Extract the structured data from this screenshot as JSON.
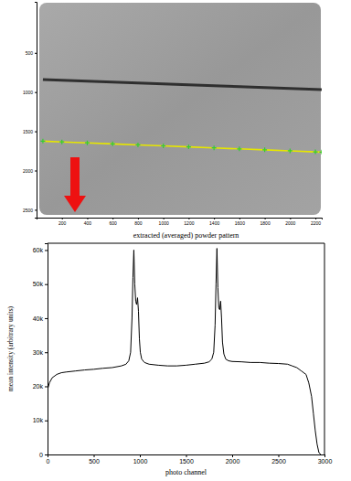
{
  "chart_data": [
    {
      "type": "image",
      "xlim": [
        0,
        2250
      ],
      "ylim": [
        2600,
        -150
      ],
      "xticks": [
        200,
        400,
        600,
        800,
        1000,
        1200,
        1400,
        1600,
        1800,
        2000,
        2200
      ],
      "yticks": [
        500,
        1000,
        1500,
        2000,
        2500
      ],
      "x": [
        50,
        200,
        400,
        600,
        800,
        1000,
        1200,
        1400,
        1600,
        1800,
        2000,
        2200,
        2250
      ],
      "series": [
        {
          "color": "#1c1c1c",
          "values": [
            840,
            849,
            861,
            872,
            884,
            895,
            907,
            919,
            930,
            942,
            953,
            965,
            968
          ]
        },
        {
          "color": "#e6e600",
          "marker": "plus",
          "values": [
            1625,
            1635,
            1647,
            1660,
            1673,
            1685,
            1698,
            1711,
            1724,
            1736,
            1749,
            1762,
            1765
          ]
        }
      ]
    },
    {
      "type": "line",
      "title": "extracted (averaged) powder pattern",
      "xlabel": "photo channel",
      "ylabel": "mean intensity (arbitrary units)",
      "xlim": [
        0,
        3000
      ],
      "ylim": [
        0,
        62000
      ],
      "xticks": [
        0,
        500,
        1000,
        1500,
        2000,
        2500,
        3000
      ],
      "yticks": [
        0,
        {
          "value": 10000,
          "label": "10k"
        },
        {
          "value": 20000,
          "label": "20k"
        },
        {
          "value": 30000,
          "label": "30k"
        },
        {
          "value": 40000,
          "label": "40k"
        },
        {
          "value": 50000,
          "label": "50k"
        },
        {
          "value": 60000,
          "label": "60k"
        }
      ],
      "color": "#000000",
      "x": [
        0,
        20,
        50,
        100,
        150,
        200,
        300,
        400,
        500,
        600,
        700,
        800,
        850,
        880,
        900,
        915,
        925,
        935,
        945,
        955,
        965,
        975,
        985,
        995,
        1005,
        1020,
        1050,
        1100,
        1200,
        1300,
        1400,
        1500,
        1600,
        1700,
        1750,
        1780,
        1800,
        1815,
        1825,
        1835,
        1845,
        1855,
        1865,
        1875,
        1885,
        1895,
        1910,
        1930,
        1960,
        2000,
        2100,
        2200,
        2300,
        2400,
        2500,
        2600,
        2650,
        2700,
        2750,
        2800,
        2830,
        2860,
        2880,
        2900,
        2920,
        2940,
        2960
      ],
      "values": [
        19000,
        21000,
        22500,
        23500,
        24000,
        24200,
        24500,
        24800,
        25000,
        25300,
        25500,
        26000,
        26500,
        27500,
        30000,
        40000,
        52000,
        60000,
        50000,
        45000,
        44000,
        46000,
        42000,
        34000,
        30000,
        28000,
        27000,
        26500,
        26200,
        26000,
        26000,
        26200,
        26500,
        26800,
        27200,
        28000,
        30000,
        38000,
        50000,
        60500,
        49000,
        43000,
        42500,
        45000,
        40000,
        33000,
        29500,
        28000,
        27500,
        27300,
        27200,
        27000,
        27000,
        26800,
        26700,
        26500,
        26000,
        25500,
        24500,
        23500,
        21000,
        17000,
        12000,
        7000,
        3000,
        500,
        0
      ]
    }
  ]
}
